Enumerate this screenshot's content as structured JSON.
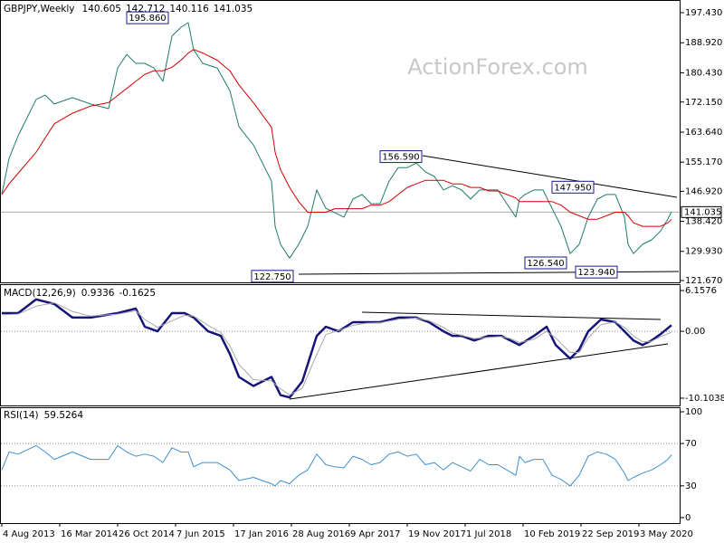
{
  "chart_data": [
    {
      "type": "line",
      "title": "GBPJPY,Weekly",
      "ohlc": [
        140.605,
        142.712,
        140.116,
        141.035
      ],
      "watermark": "ActionForex.com",
      "x": [
        0,
        4,
        9,
        19,
        24,
        29,
        39,
        49,
        59,
        64,
        69,
        74,
        79,
        84,
        89,
        94,
        99,
        103,
        106,
        111,
        119,
        126,
        131,
        139,
        149,
        151,
        154,
        159,
        164,
        169,
        174,
        179,
        184,
        189,
        194,
        199,
        204,
        209,
        214,
        219,
        224,
        229,
        234,
        239,
        244,
        249,
        254,
        259,
        264,
        269,
        274,
        279,
        284,
        286,
        289,
        294,
        299,
        304,
        309,
        314,
        319,
        324,
        329,
        334,
        339,
        344,
        346,
        349,
        354,
        359,
        364,
        368,
        370
      ],
      "series": [
        {
          "color": "#1f7a6a",
          "values": [
            146.0,
            156.2,
            162.6,
            172.9,
            174.1,
            171.6,
            173.4,
            171.6,
            170.3,
            181.8,
            185.6,
            183.1,
            183.1,
            181.8,
            178.0,
            190.8,
            193.3,
            194.6,
            186.9,
            183.1,
            181.8,
            175.4,
            165.2,
            160.0,
            149.8,
            137.0,
            131.9,
            128.0,
            131.9,
            137.0,
            147.3,
            142.1,
            140.9,
            139.6,
            144.7,
            146.0,
            143.4,
            143.4,
            149.8,
            153.6,
            153.6,
            154.9,
            152.4,
            151.1,
            147.3,
            148.5,
            147.3,
            144.7,
            147.3,
            147.3,
            147.3,
            143.4,
            139.6,
            144.7,
            146.0,
            147.3,
            147.3,
            142.1,
            137.0,
            129.3,
            131.9,
            139.6,
            144.7,
            146.0,
            146.0,
            139.6,
            131.9,
            129.3,
            131.9,
            133.2,
            135.7,
            139.1,
            141.1
          ]
        },
        {
          "color": "#d40000",
          "values": [
            146,
            149,
            152,
            158,
            162,
            166,
            169,
            171,
            172,
            174,
            176,
            178,
            180,
            181,
            181,
            182,
            184,
            186,
            187,
            186,
            184,
            181,
            177,
            172,
            165,
            158,
            153,
            148,
            144,
            141,
            141,
            141,
            142,
            142,
            142,
            142,
            143,
            143,
            144,
            146,
            148,
            149,
            150,
            150,
            150,
            149,
            149,
            148,
            148,
            147,
            147,
            146,
            145,
            144,
            144,
            144,
            144,
            144,
            143,
            141,
            140,
            139,
            139,
            140,
            141,
            141,
            140,
            138,
            137,
            137,
            137,
            138,
            139
          ]
        }
      ],
      "xlim": [
        -1,
        375
      ],
      "ylim": [
        121.16,
        201.01
      ],
      "yticks": [
        {
          "value": 197.43,
          "label": "197.430"
        },
        {
          "value": 188.92,
          "label": "188.920"
        },
        {
          "value": 180.43,
          "label": "180.430"
        },
        {
          "value": 172.15,
          "label": "172.150"
        },
        {
          "value": 163.64,
          "label": "163.640"
        },
        {
          "value": 155.17,
          "label": "155.170"
        },
        {
          "value": 146.92,
          "label": "146.920"
        },
        {
          "value": 138.42,
          "label": "138.420"
        },
        {
          "value": 129.93,
          "label": "129.930"
        },
        {
          "value": 121.67,
          "label": "121.670"
        }
      ],
      "grid": false,
      "annotations": [
        {
          "x": 92,
          "value": 195.86,
          "label": "195.860"
        },
        {
          "x": 161,
          "value": 122.75,
          "label": "122.750"
        },
        {
          "x": 232,
          "value": 156.59,
          "label": "156.590"
        },
        {
          "x": 327,
          "value": 147.95,
          "label": "147.950"
        },
        {
          "x": 312,
          "value": 126.54,
          "label": "126.540"
        },
        {
          "x": 340,
          "value": 123.94,
          "label": "123.940"
        }
      ]
    },
    {
      "type": "line",
      "title": "MACD(12,26,9)",
      "readout": [
        0.9336,
        -0.1625
      ],
      "x": [
        0,
        9,
        19,
        29,
        39,
        49,
        64,
        74,
        79,
        86,
        94,
        101,
        106,
        114,
        121,
        126,
        131,
        139,
        149,
        154,
        159,
        166,
        174,
        179,
        186,
        194,
        201,
        209,
        219,
        229,
        236,
        244,
        249,
        254,
        261,
        269,
        276,
        281,
        286,
        294,
        301,
        306,
        314,
        319,
        324,
        331,
        339,
        344,
        349,
        354,
        359,
        364,
        370
      ],
      "series": [
        {
          "color": "#14147a",
          "values": [
            2.75,
            2.75,
            4.82,
            4.13,
            2.07,
            2.07,
            2.75,
            3.44,
            0.69,
            0,
            2.75,
            2.75,
            2.07,
            0,
            -0.69,
            -3.44,
            -6.89,
            -8.26,
            -6.89,
            -9.64,
            -10.0,
            -7.58,
            -0.69,
            0.69,
            0,
            1.38,
            1.38,
            1.38,
            2.07,
            2.07,
            1.38,
            0,
            -0.69,
            -0.69,
            -1.38,
            -0.69,
            -0.69,
            -1.38,
            -2.07,
            -0.69,
            0.69,
            -2.07,
            -4.13,
            -2.75,
            0,
            1.79,
            1.38,
            0,
            -1.38,
            -2.07,
            -1.38,
            -0.41,
            0.93
          ]
        },
        {
          "color": "#a8a8a8",
          "values": [
            2.5,
            2.6,
            3.8,
            4.3,
            3.0,
            2.3,
            2.6,
            3.1,
            1.8,
            0.6,
            1.6,
            2.4,
            2.3,
            0.9,
            -0.2,
            -2.2,
            -5.0,
            -7.3,
            -7.5,
            -8.7,
            -9.6,
            -8.6,
            -3.5,
            -0.5,
            0.1,
            0.9,
            1.2,
            1.3,
            1.8,
            2.0,
            1.6,
            0.6,
            -0.3,
            -0.6,
            -1.1,
            -0.9,
            -0.8,
            -1.1,
            -1.7,
            -1.2,
            0.0,
            -1.0,
            -3.2,
            -3.2,
            -1.0,
            1.0,
            1.4,
            0.6,
            -0.7,
            -1.6,
            -1.5,
            -0.8,
            -0.16
          ]
        }
      ],
      "xlim": [
        -1,
        375
      ],
      "ylim": [
        -11.2,
        7.12
      ],
      "yticks": [
        6.1576,
        {
          "value": 0,
          "label": "0.00"
        },
        -10.1038
      ],
      "grid": "inner"
    },
    {
      "type": "line",
      "title": "RSI(14)",
      "readout": [
        59.5264
      ],
      "x": [
        0,
        4,
        9,
        19,
        24,
        29,
        39,
        49,
        59,
        64,
        69,
        74,
        79,
        84,
        89,
        94,
        99,
        103,
        106,
        111,
        119,
        126,
        131,
        139,
        149,
        151,
        154,
        159,
        164,
        169,
        174,
        179,
        184,
        189,
        194,
        199,
        204,
        209,
        214,
        219,
        224,
        229,
        234,
        239,
        244,
        249,
        254,
        259,
        264,
        269,
        274,
        279,
        284,
        286,
        289,
        294,
        299,
        304,
        309,
        314,
        319,
        324,
        329,
        334,
        339,
        344,
        346,
        349,
        354,
        359,
        364,
        368,
        370
      ],
      "series": [
        {
          "color": "#3d8fd6",
          "values": [
            45,
            62,
            60,
            68,
            62,
            55,
            62,
            55,
            55,
            68,
            62,
            58,
            60,
            58,
            52,
            66,
            62,
            62,
            48,
            52,
            52,
            45,
            35,
            38,
            32,
            30,
            35,
            32,
            40,
            45,
            60,
            50,
            48,
            47,
            58,
            55,
            50,
            52,
            60,
            62,
            58,
            60,
            50,
            52,
            45,
            52,
            48,
            44,
            55,
            50,
            50,
            45,
            40,
            58,
            52,
            55,
            55,
            40,
            36,
            30,
            40,
            58,
            62,
            60,
            55,
            42,
            35,
            38,
            42,
            45,
            50,
            55,
            59.5
          ]
        }
      ],
      "xlim": [
        -1,
        375
      ],
      "ylim": [
        -5.2,
        104.3
      ],
      "yticks": [
        100,
        70,
        30,
        0
      ],
      "grid": "inner",
      "xticks": [
        {
          "value": 0,
          "label": "4 Aug 2013"
        },
        {
          "value": 32,
          "label": "16 Mar 2014"
        },
        {
          "value": 64,
          "label": "26 Oct 2014"
        },
        {
          "value": 96,
          "label": "7 Jun 2015"
        },
        {
          "value": 128,
          "label": "17 Jan 2016"
        },
        {
          "value": 160,
          "label": "28 Aug 2016"
        },
        {
          "value": 192,
          "label": "9 Apr 2017"
        },
        {
          "value": 224,
          "label": "19 Nov 2017"
        },
        {
          "value": 256,
          "label": "1 Jul 2018"
        },
        {
          "value": 288,
          "label": "10 Feb 2019"
        },
        {
          "value": 320,
          "label": "22 Sep 2019"
        },
        {
          "value": 352,
          "label": "3 May 2020"
        }
      ]
    }
  ]
}
